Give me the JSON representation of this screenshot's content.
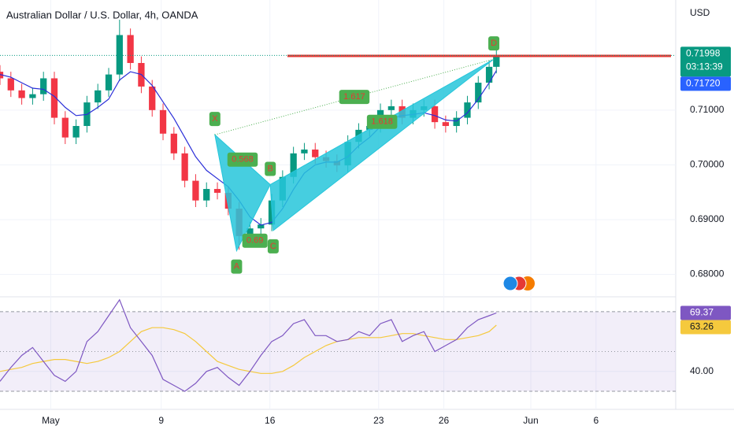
{
  "chart_data": {
    "type": "candlestick",
    "title": "Australian Dollar / U.S. Dollar, 4h, OANDA",
    "currency": "USD",
    "up_color": "#089981",
    "down_color": "#f23645",
    "x": [
      0,
      3,
      6,
      9,
      12,
      15,
      18,
      21,
      24,
      27,
      30,
      33,
      36,
      39,
      42,
      45,
      48,
      51,
      54,
      57,
      60,
      63,
      66,
      69,
      72,
      75,
      78,
      81,
      84,
      87,
      90,
      93,
      96,
      99,
      102,
      105,
      108,
      111,
      114,
      117,
      120,
      123,
      126,
      129,
      132,
      135,
      137
    ],
    "open": [
      0.717,
      0.7158,
      0.7136,
      0.7122,
      0.7129,
      0.7158,
      0.7086,
      0.705,
      0.7071,
      0.7114,
      0.7136,
      0.7165,
      0.7237,
      0.7186,
      0.7143,
      0.71,
      0.7057,
      0.7021,
      0.6971,
      0.6935,
      0.6956,
      0.6949,
      0.692,
      0.687,
      0.6884,
      0.6891,
      0.6935,
      0.6978,
      0.7021,
      0.7028,
      0.7014,
      0.7007,
      0.6999,
      0.7042,
      0.7064,
      0.7071,
      0.71,
      0.7107,
      0.7086,
      0.71,
      0.7107,
      0.7078,
      0.7071,
      0.7086,
      0.7114,
      0.715,
      0.7179
    ],
    "high": [
      0.7182,
      0.717,
      0.7148,
      0.7141,
      0.717,
      0.717,
      0.7098,
      0.7083,
      0.7126,
      0.7148,
      0.7177,
      0.7265,
      0.7249,
      0.7198,
      0.7155,
      0.7112,
      0.7069,
      0.7033,
      0.6983,
      0.6968,
      0.6968,
      0.6961,
      0.6932,
      0.6896,
      0.6903,
      0.6947,
      0.699,
      0.7033,
      0.704,
      0.704,
      0.7026,
      0.7019,
      0.7054,
      0.7076,
      0.7083,
      0.7112,
      0.7119,
      0.7119,
      0.7112,
      0.7119,
      0.7119,
      0.709,
      0.7098,
      0.7126,
      0.7162,
      0.7191,
      0.7212
    ],
    "low": [
      0.7146,
      0.7124,
      0.711,
      0.711,
      0.7117,
      0.7074,
      0.7038,
      0.7038,
      0.7059,
      0.7102,
      0.7124,
      0.7153,
      0.7174,
      0.7131,
      0.7088,
      0.7045,
      0.7009,
      0.6959,
      0.6923,
      0.6923,
      0.6937,
      0.6908,
      0.6845,
      0.6858,
      0.6872,
      0.6879,
      0.6923,
      0.6966,
      0.7009,
      0.7002,
      0.6995,
      0.6987,
      0.6987,
      0.703,
      0.7052,
      0.7059,
      0.7088,
      0.7074,
      0.7074,
      0.7088,
      0.7066,
      0.7059,
      0.7059,
      0.7074,
      0.7102,
      0.7138,
      0.7167
    ],
    "close": [
      0.7158,
      0.7136,
      0.7122,
      0.7129,
      0.7158,
      0.7086,
      0.705,
      0.7071,
      0.7114,
      0.7136,
      0.7165,
      0.7237,
      0.7186,
      0.7143,
      0.71,
      0.7057,
      0.7021,
      0.6971,
      0.6935,
      0.6956,
      0.6949,
      0.692,
      0.687,
      0.6884,
      0.6891,
      0.6935,
      0.6978,
      0.7021,
      0.7028,
      0.7014,
      0.7007,
      0.6999,
      0.7042,
      0.7064,
      0.7071,
      0.71,
      0.7107,
      0.7086,
      0.71,
      0.7107,
      0.7078,
      0.7071,
      0.7086,
      0.7114,
      0.715,
      0.7179,
      0.71998
    ],
    "countdown": "03:13:39",
    "ma": {
      "color": "#2a2ed8",
      "last_label": "0.71720",
      "values": [
        0.7165,
        0.716,
        0.715,
        0.714,
        0.7138,
        0.7125,
        0.7105,
        0.709,
        0.7092,
        0.7105,
        0.712,
        0.7155,
        0.717,
        0.7165,
        0.7145,
        0.7115,
        0.7085,
        0.705,
        0.7015,
        0.699,
        0.6975,
        0.696,
        0.6935,
        0.6905,
        0.689,
        0.6895,
        0.692,
        0.6955,
        0.6985,
        0.7,
        0.7005,
        0.7005,
        0.7015,
        0.7035,
        0.705,
        0.707,
        0.7085,
        0.709,
        0.7092,
        0.7095,
        0.709,
        0.7082,
        0.708,
        0.7095,
        0.712,
        0.715,
        0.7172
      ]
    },
    "resistance": 0.7199,
    "resistance_color": "#e53935",
    "xlim": [
      0,
      186.5
    ],
    "xticks": [
      {
        "value": 14,
        "label": "May"
      },
      {
        "value": 44.5,
        "label": "9"
      },
      {
        "value": 74.5,
        "label": "16"
      },
      {
        "value": 104.5,
        "label": "23"
      },
      {
        "value": 122.5,
        "label": "26"
      },
      {
        "value": 146.5,
        "label": "Jun"
      },
      {
        "value": 164.5,
        "label": "6"
      }
    ],
    "ylim": [
      0.6762,
      0.7301
    ],
    "yticks": [
      {
        "value": 0.68,
        "label": "0.68000"
      },
      {
        "value": 0.69,
        "label": "0.69000"
      },
      {
        "value": 0.7,
        "label": "0.70000"
      },
      {
        "value": 0.71,
        "label": "0.71000"
      }
    ],
    "pattern": {
      "color": "#26c6da",
      "label_color": "#4caf50",
      "points": [
        {
          "label": "X",
          "x": 59.3,
          "y": 0.7055
        },
        {
          "label": "A",
          "x": 65.3,
          "y": 0.6843
        },
        {
          "label": "B",
          "x": 74.6,
          "y": 0.6964
        },
        {
          "label": "C",
          "x": 75.4,
          "y": 0.688
        },
        {
          "label": "D",
          "x": 136.3,
          "y": 0.7193
        }
      ],
      "ratios": [
        "0.568",
        "0.69",
        "1.617",
        "1.618"
      ]
    },
    "rsi": {
      "type": "line",
      "color": "#7e57c2",
      "ylim": [
        22.9,
        76.3
      ],
      "yticks": [
        {
          "value": 40,
          "label": "40.00"
        }
      ],
      "bands": [
        30,
        50,
        70
      ],
      "values": [
        35,
        42,
        48,
        52,
        45,
        38,
        35,
        40,
        55,
        60,
        68,
        76,
        62,
        55,
        48,
        36,
        33,
        30,
        34,
        40,
        42,
        37,
        33,
        40,
        48,
        55,
        58,
        64,
        66,
        58,
        58,
        55,
        56,
        60,
        58,
        64,
        66,
        55,
        58,
        60,
        50,
        53,
        56,
        62,
        66,
        68,
        69.37
      ],
      "ma": {
        "color": "#f5c93d",
        "values": [
          40,
          41,
          42,
          44,
          45,
          46,
          46,
          45,
          44,
          45,
          47,
          50,
          55,
          60,
          62,
          62,
          61,
          59,
          55,
          50,
          45,
          43,
          41,
          40,
          39,
          39,
          40,
          43,
          47,
          50,
          53,
          55,
          56,
          57,
          57,
          57,
          58,
          59,
          59,
          58,
          57,
          56,
          56,
          57,
          58,
          60,
          63.26
        ]
      }
    }
  }
}
